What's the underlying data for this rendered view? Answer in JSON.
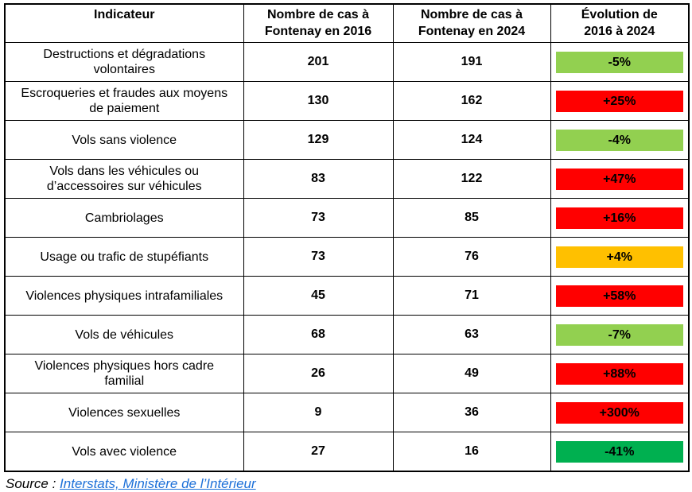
{
  "table": {
    "columns": [
      {
        "lines": [
          "Indicateur",
          ""
        ]
      },
      {
        "lines": [
          "Nombre de cas à",
          "Fontenay en 2016"
        ]
      },
      {
        "lines": [
          "Nombre de cas à",
          "Fontenay en 2024"
        ]
      },
      {
        "lines": [
          "Évolution de",
          "2016 à 2024"
        ]
      }
    ],
    "rows": [
      {
        "indicator": "Destructions et dégradations volontaires",
        "cases_2016": "201",
        "cases_2024": "191",
        "evolution": "-5%",
        "evolution_color": "#92D050"
      },
      {
        "indicator": "Escroqueries et fraudes aux moyens de paiement",
        "cases_2016": "130",
        "cases_2024": "162",
        "evolution": "+25%",
        "evolution_color": "#FF0000"
      },
      {
        "indicator": "Vols sans violence",
        "cases_2016": "129",
        "cases_2024": "124",
        "evolution": "-4%",
        "evolution_color": "#92D050"
      },
      {
        "indicator": "Vols dans les véhicules ou d’accessoires sur véhicules",
        "cases_2016": "83",
        "cases_2024": "122",
        "evolution": "+47%",
        "evolution_color": "#FF0000"
      },
      {
        "indicator": "Cambriolages",
        "cases_2016": "73",
        "cases_2024": "85",
        "evolution": "+16%",
        "evolution_color": "#FF0000"
      },
      {
        "indicator": "Usage ou trafic de stupéfiants",
        "cases_2016": "73",
        "cases_2024": "76",
        "evolution": "+4%",
        "evolution_color": "#FFC000"
      },
      {
        "indicator": "Violences physiques intrafamiliales",
        "cases_2016": "45",
        "cases_2024": "71",
        "evolution": "+58%",
        "evolution_color": "#FF0000"
      },
      {
        "indicator": "Vols de véhicules",
        "cases_2016": "68",
        "cases_2024": "63",
        "evolution": "-7%",
        "evolution_color": "#92D050"
      },
      {
        "indicator": "Violences physiques hors cadre familial",
        "cases_2016": "26",
        "cases_2024": "49",
        "evolution": "+88%",
        "evolution_color": "#FF0000"
      },
      {
        "indicator": "Violences sexuelles",
        "cases_2016": "9",
        "cases_2024": "36",
        "evolution": "+300%",
        "evolution_color": "#FF0000"
      },
      {
        "indicator": "Vols avec violence",
        "cases_2016": "27",
        "cases_2024": "16",
        "evolution": "-41%",
        "evolution_color": "#00B050"
      }
    ]
  },
  "source": {
    "prefix": "Source : ",
    "link_text": "Interstats, Ministère de l’Intérieur",
    "link_color": "#1B6FD8"
  },
  "colors": {
    "decrease_light_green": "#92D050",
    "decrease_dark_green": "#00B050",
    "increase_red": "#FF0000",
    "slight_increase_orange": "#FFC000",
    "border_black": "#000000"
  }
}
